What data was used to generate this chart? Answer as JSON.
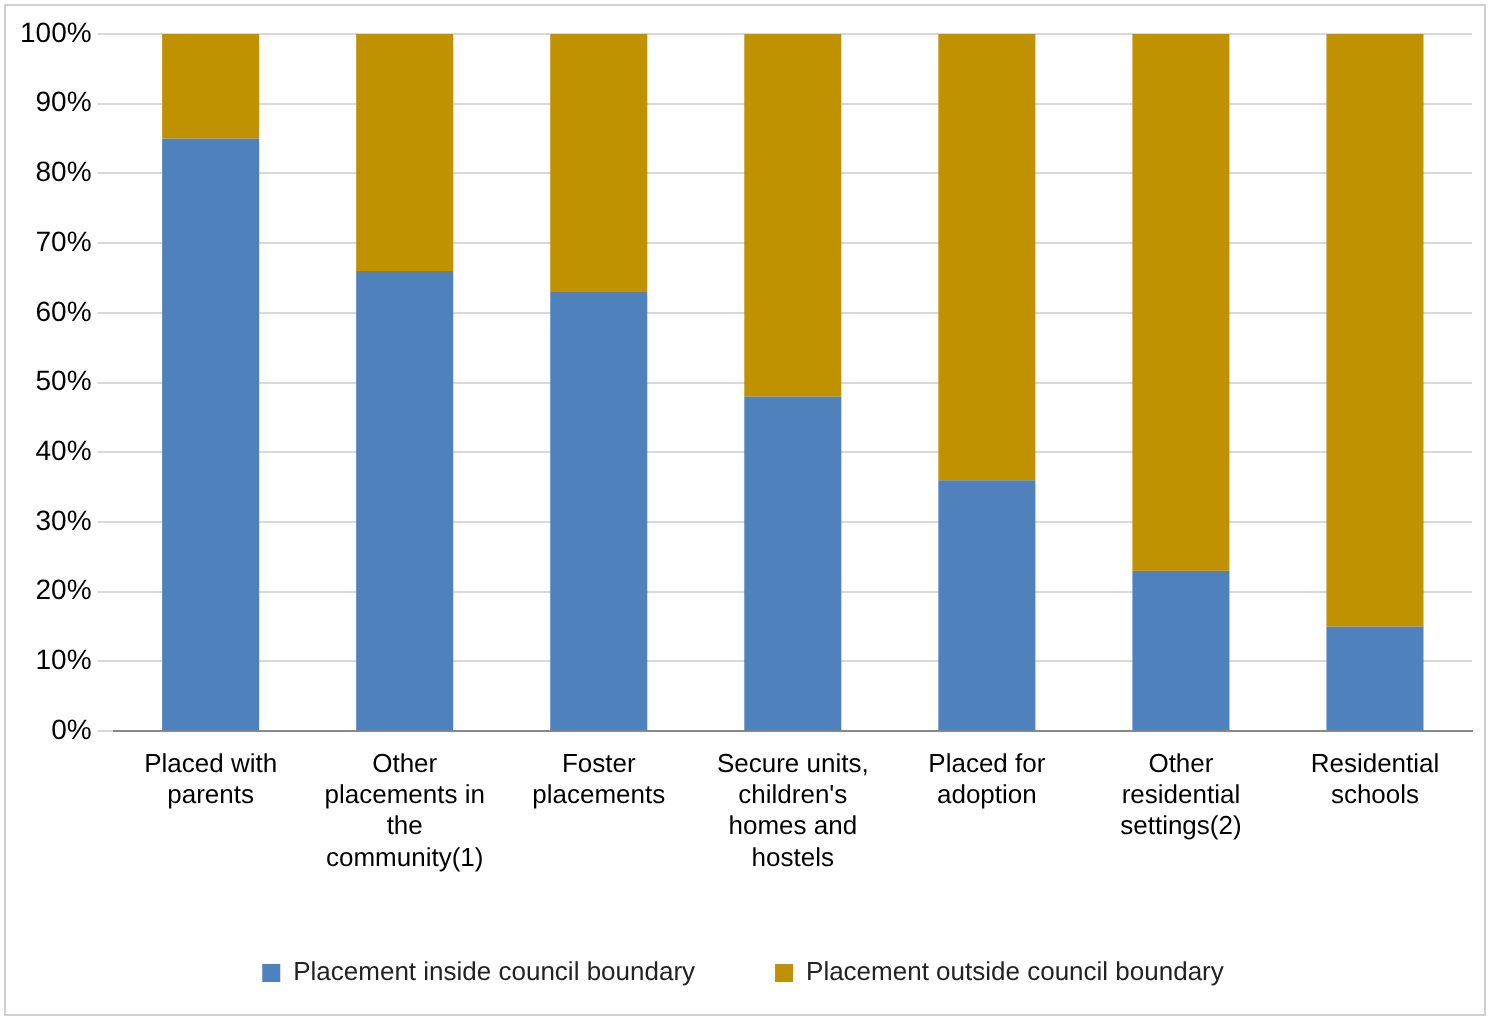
{
  "chart_data": {
    "type": "bar",
    "stacked": true,
    "categories": [
      "Placed with parents",
      "Other placements in the community(1)",
      "Foster placements",
      "Secure units, children's homes and hostels",
      "Placed for adoption",
      "Other residential settings(2)",
      "Residential schools"
    ],
    "series": [
      {
        "name": "Placement inside council boundary",
        "color": "#4f81bd",
        "values": [
          85,
          66,
          63,
          48,
          36,
          23,
          15
        ]
      },
      {
        "name": "Placement outside council boundary",
        "color": "#c09100",
        "values": [
          15,
          34,
          37,
          52,
          64,
          77,
          85
        ]
      }
    ],
    "ylim": [
      0,
      100
    ],
    "yticks": [
      {
        "value": 0,
        "label": "0%"
      },
      {
        "value": 10,
        "label": "10%"
      },
      {
        "value": 20,
        "label": "20%"
      },
      {
        "value": 30,
        "label": "30%"
      },
      {
        "value": 40,
        "label": "40%"
      },
      {
        "value": 50,
        "label": "50%"
      },
      {
        "value": 60,
        "label": "60%"
      },
      {
        "value": 70,
        "label": "70%"
      },
      {
        "value": 80,
        "label": "80%"
      },
      {
        "value": 90,
        "label": "90%"
      },
      {
        "value": 100,
        "label": "100%"
      }
    ],
    "grid": "y",
    "legend": "bottom"
  }
}
